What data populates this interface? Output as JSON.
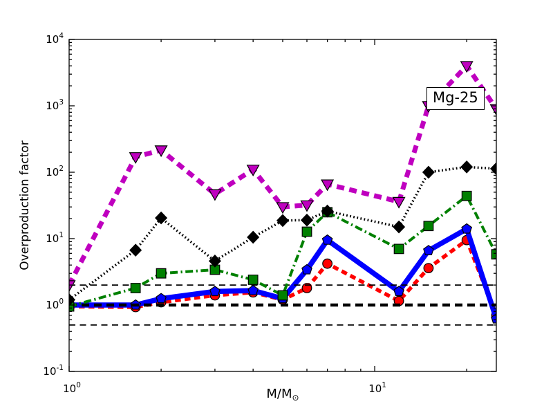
{
  "figure": {
    "ylabel": "Overproduction factor",
    "xlabel_main": "M/M",
    "xlabel_sub": "⊙",
    "annotation": "Mg-25"
  },
  "chart_data": {
    "type": "line",
    "title": "",
    "xlabel": "M/M_sun",
    "ylabel": "Overproduction factor",
    "annotation_label": "Mg-25",
    "xscale": "log",
    "yscale": "log",
    "xlim": [
      1,
      25
    ],
    "ylim": [
      0.1,
      10000
    ],
    "grid": false,
    "legend": "none",
    "x": [
      1.0,
      1.65,
      2.0,
      3.0,
      4.0,
      5.0,
      6.0,
      7.0,
      12.0,
      15.0,
      20.0,
      25.0
    ],
    "series": [
      {
        "name": "red-dashed-circles",
        "color": "#ff0000",
        "linestyle": "dashed",
        "linewidth": 5.5,
        "dash": "8.5 5.5",
        "marker": "circle",
        "zorder": 1,
        "values": [
          0.95,
          0.93,
          1.1,
          1.4,
          1.55,
          1.2,
          1.8,
          4.2,
          1.15,
          3.6,
          9.5,
          0.7
        ]
      },
      {
        "name": "blue-solid-pentagons",
        "color": "#0000ff",
        "linestyle": "solid",
        "linewidth": 7.5,
        "dash": "",
        "marker": "pentagon",
        "zorder": 2,
        "values": [
          1.0,
          1.0,
          1.25,
          1.6,
          1.65,
          1.25,
          3.4,
          9.5,
          1.6,
          6.6,
          14,
          0.62
        ]
      },
      {
        "name": "green-dashdot-squares",
        "color": "#008000",
        "linestyle": "dashdot",
        "linewidth": 4,
        "dash": "11 4.5 2.2 4.5",
        "marker": "square",
        "zorder": 4,
        "values": [
          0.95,
          1.8,
          3.0,
          3.4,
          2.4,
          1.4,
          12.7,
          25,
          7.0,
          15.5,
          44,
          5.8
        ]
      },
      {
        "name": "black-dotted-diamonds",
        "color": "#000000",
        "linestyle": "dotted",
        "linewidth": 3.5,
        "dash": "1.8 3.4",
        "marker": "diamond",
        "zorder": 5,
        "values": [
          1.2,
          6.7,
          20.5,
          4.6,
          10.5,
          18.7,
          19,
          26,
          15,
          100,
          120,
          113
        ]
      },
      {
        "name": "magenta-dashed-triangles",
        "color": "#bf00bf",
        "linestyle": "dashed",
        "linewidth": 7,
        "dash": "11 7.5",
        "marker": "triangle-down",
        "zorder": 6,
        "values": [
          2.0,
          170,
          215,
          47,
          110,
          30,
          32,
          66,
          36,
          1000,
          4000,
          900
        ]
      }
    ],
    "reference_lines": [
      {
        "name": "ref-line-y2",
        "y": 2.0,
        "linewidth": 1.8,
        "dash": "9 6.5",
        "color": "#000000",
        "zorder": 3
      },
      {
        "name": "ref-line-y1",
        "y": 1.0,
        "linewidth": 4.5,
        "dash": "11 7",
        "color": "#000000",
        "zorder": 3
      },
      {
        "name": "ref-line-y0.5",
        "y": 0.5,
        "linewidth": 1.8,
        "dash": "9 6.5",
        "color": "#000000",
        "zorder": 3
      }
    ],
    "x_major_ticks": [
      {
        "value": 1,
        "label_base": "10",
        "label_exp": "0"
      },
      {
        "value": 10,
        "label_base": "10",
        "label_exp": "1"
      }
    ],
    "x_minor_ticks": [
      2,
      3,
      4,
      5,
      6,
      7,
      8,
      9,
      20
    ],
    "y_major_ticks": [
      {
        "value": 0.1,
        "label_base": "10",
        "label_exp": "-1"
      },
      {
        "value": 1,
        "label_base": "10",
        "label_exp": "0"
      },
      {
        "value": 10,
        "label_base": "10",
        "label_exp": "1"
      },
      {
        "value": 100,
        "label_base": "10",
        "label_exp": "2"
      },
      {
        "value": 1000,
        "label_base": "10",
        "label_exp": "3"
      },
      {
        "value": 10000,
        "label_base": "10",
        "label_exp": "4"
      }
    ]
  }
}
